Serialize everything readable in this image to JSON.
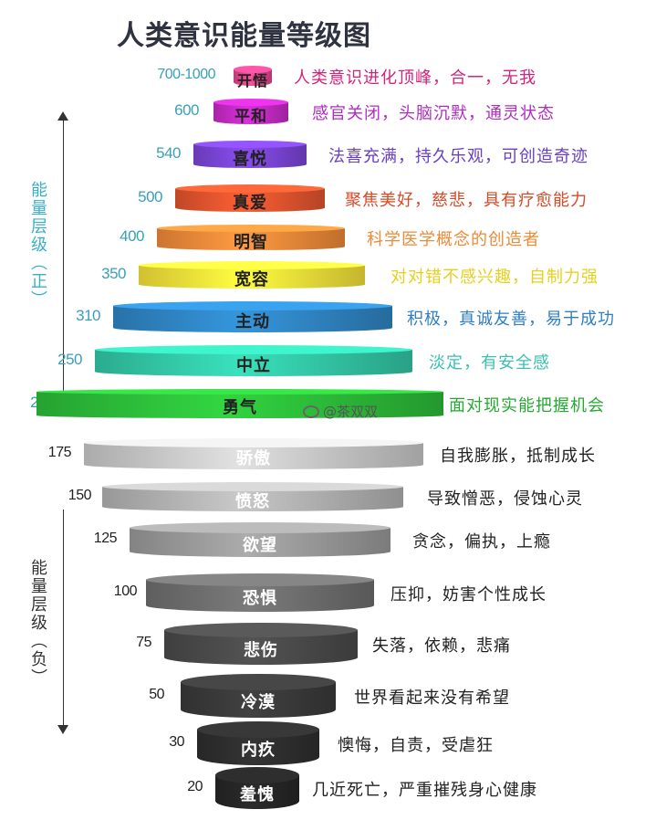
{
  "title": "人类意识能量等级图",
  "axis": {
    "positive_label": "能量层级（正）",
    "negative_label": "能量层级（负）"
  },
  "watermark": "@茶双双",
  "colors": {
    "positive_text": "#3bb0c4",
    "negative_text": "#333333"
  },
  "levels": [
    {
      "value": "700-1000",
      "name": "开悟",
      "desc": "人类意识进化顶峰，合一，无我",
      "color": "#e0468c",
      "desc_color": "#d4237a",
      "name_color": "#222",
      "value_color": "#3aa0b8"
    },
    {
      "value": "600",
      "name": "平和",
      "desc": "感官关闭，头脑沉默，通灵状态",
      "color": "#c42bc4",
      "desc_color": "#b02cc0",
      "name_color": "#222",
      "value_color": "#3aa0b8"
    },
    {
      "value": "540",
      "name": "喜悦",
      "desc": "法喜充满，持久乐观，可创造奇迹",
      "color": "#7a45d6",
      "desc_color": "#6a3fc4",
      "name_color": "#222",
      "value_color": "#3aa0b8"
    },
    {
      "value": "500",
      "name": "真爱",
      "desc": "聚焦美好，慈悲，具有疗愈能力",
      "color": "#e2552e",
      "desc_color": "#d64a28",
      "name_color": "#222",
      "value_color": "#3aa0b8"
    },
    {
      "value": "400",
      "name": "明智",
      "desc": "科学医学概念的创造者",
      "color": "#f08a3a",
      "desc_color": "#ee8a35",
      "name_color": "#222",
      "value_color": "#3aa0b8"
    },
    {
      "value": "350",
      "name": "宽容",
      "desc": "对对错不感兴趣，自制力强",
      "color": "#f6e23a",
      "desc_color": "#e5d020",
      "name_color": "#222",
      "value_color": "#3aa0b8"
    },
    {
      "value": "310",
      "name": "主动",
      "desc": "积极，真诚友善，易于成功",
      "color": "#2f86c4",
      "desc_color": "#2f7fc0",
      "name_color": "#222",
      "value_color": "#3aa0b8"
    },
    {
      "value": "250",
      "name": "中立",
      "desc": "淡定，有安全感",
      "color": "#33c9a8",
      "desc_color": "#3cc0b0",
      "name_color": "#222",
      "value_color": "#3aa0b8"
    },
    {
      "value": "200",
      "name": "勇气",
      "desc": "面对现实能把握机会",
      "color": "#2dbe3a",
      "desc_color": "#26a832",
      "name_color": "#222",
      "value_color": "#3aa0b8"
    },
    {
      "value": "175",
      "name": "骄傲",
      "desc": "自我膨胀，抵制成长",
      "color": "#c9c9c9",
      "desc_color": "#222",
      "name_color": "#fff",
      "value_color": "#222"
    },
    {
      "value": "150",
      "name": "愤怒",
      "desc": "导致憎恶，侵蚀心灵",
      "color": "#b3b3b3",
      "desc_color": "#222",
      "name_color": "#fff",
      "value_color": "#222"
    },
    {
      "value": "125",
      "name": "欲望",
      "desc": "贪念，偏执，上瘾",
      "color": "#9a9a9a",
      "desc_color": "#222",
      "name_color": "#fff",
      "value_color": "#222"
    },
    {
      "value": "100",
      "name": "恐惧",
      "desc": "压抑，妨害个性成长",
      "color": "#6e6e6e",
      "desc_color": "#222",
      "name_color": "#fff",
      "value_color": "#222"
    },
    {
      "value": "75",
      "name": "悲伤",
      "desc": "失落，依赖，悲痛",
      "color": "#4a4a4a",
      "desc_color": "#222",
      "name_color": "#fff",
      "value_color": "#222"
    },
    {
      "value": "50",
      "name": "冷漠",
      "desc": "世界看起来没有希望",
      "color": "#3a3a3a",
      "desc_color": "#222",
      "name_color": "#fff",
      "value_color": "#222"
    },
    {
      "value": "30",
      "name": "内疚",
      "desc": "懊悔，自责，受虐狂",
      "color": "#2e2e2e",
      "desc_color": "#222",
      "name_color": "#fff",
      "value_color": "#222"
    },
    {
      "value": "20",
      "name": "羞愧",
      "desc": "几近死亡，严重摧残身心健康",
      "color": "#262626",
      "desc_color": "#222",
      "name_color": "#fff",
      "value_color": "#222"
    }
  ]
}
